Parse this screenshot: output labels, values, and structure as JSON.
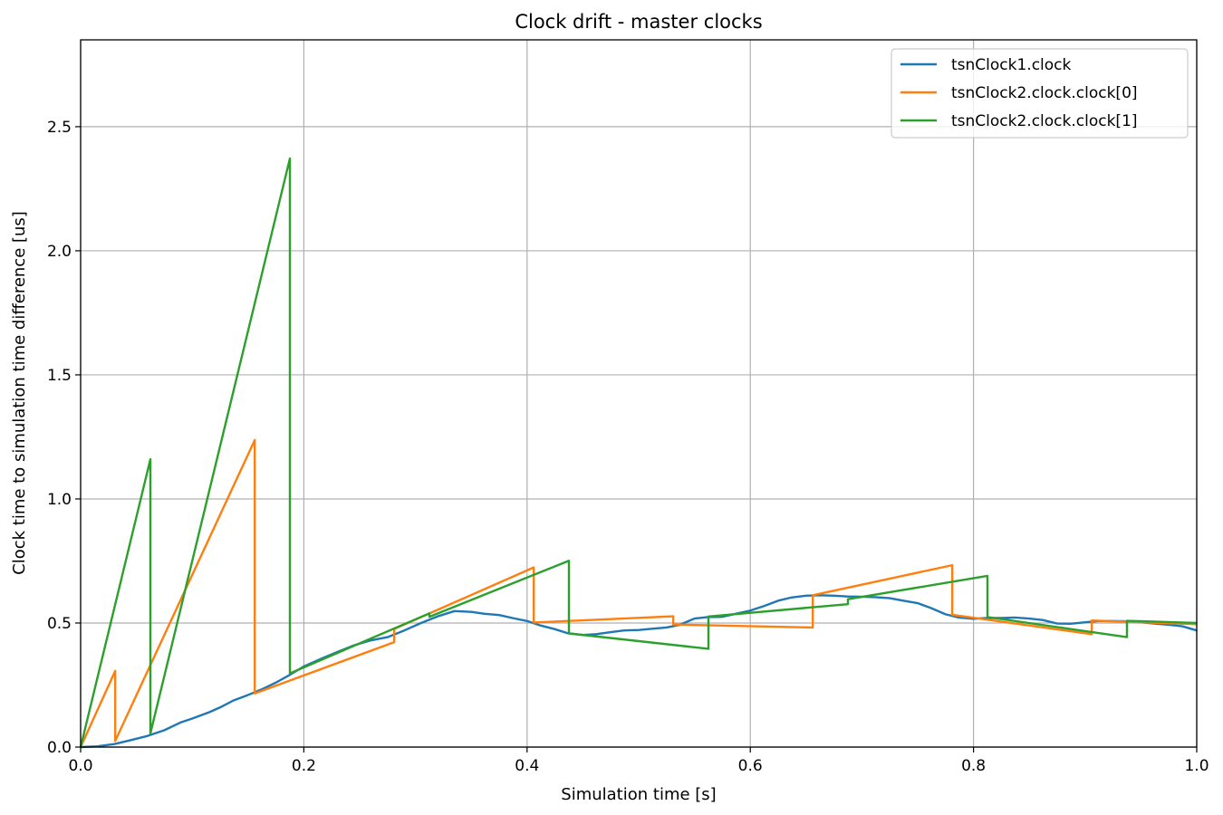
{
  "chart_data": {
    "type": "line",
    "title": "Clock drift - master clocks",
    "xlabel": "Simulation time [s]",
    "ylabel": "Clock time to simulation time difference [us]",
    "xlim": [
      0,
      1.0
    ],
    "ylim": [
      0,
      2.85
    ],
    "x_ticks": [
      0.0,
      0.2,
      0.4,
      0.6,
      0.8,
      1.0
    ],
    "x_tick_labels": [
      "0.0",
      "0.2",
      "0.4",
      "0.6",
      "0.8",
      "1.0"
    ],
    "y_ticks": [
      0.0,
      0.5,
      1.0,
      1.5,
      2.0,
      2.5
    ],
    "y_tick_labels": [
      "0.0",
      "0.5",
      "1.0",
      "1.5",
      "2.0",
      "2.5"
    ],
    "grid": true,
    "legend_position": "top-right",
    "series": [
      {
        "name": "tsnClock1.clock",
        "color": "#1f77b4",
        "points": [
          [
            0.0,
            0.0
          ],
          [
            0.015,
            0.003
          ],
          [
            0.03,
            0.012
          ],
          [
            0.045,
            0.028
          ],
          [
            0.06,
            0.045
          ],
          [
            0.075,
            0.068
          ],
          [
            0.09,
            0.1
          ],
          [
            0.1,
            0.115
          ],
          [
            0.115,
            0.14
          ],
          [
            0.125,
            0.16
          ],
          [
            0.137,
            0.188
          ],
          [
            0.15,
            0.21
          ],
          [
            0.162,
            0.232
          ],
          [
            0.175,
            0.26
          ],
          [
            0.187,
            0.29
          ],
          [
            0.2,
            0.325
          ],
          [
            0.215,
            0.355
          ],
          [
            0.23,
            0.383
          ],
          [
            0.245,
            0.41
          ],
          [
            0.26,
            0.43
          ],
          [
            0.275,
            0.443
          ],
          [
            0.29,
            0.47
          ],
          [
            0.305,
            0.5
          ],
          [
            0.32,
            0.527
          ],
          [
            0.335,
            0.548
          ],
          [
            0.35,
            0.545
          ],
          [
            0.362,
            0.537
          ],
          [
            0.375,
            0.532
          ],
          [
            0.387,
            0.52
          ],
          [
            0.4,
            0.508
          ],
          [
            0.412,
            0.49
          ],
          [
            0.425,
            0.475
          ],
          [
            0.437,
            0.458
          ],
          [
            0.45,
            0.452
          ],
          [
            0.462,
            0.455
          ],
          [
            0.475,
            0.463
          ],
          [
            0.487,
            0.47
          ],
          [
            0.5,
            0.472
          ],
          [
            0.512,
            0.477
          ],
          [
            0.525,
            0.482
          ],
          [
            0.537,
            0.493
          ],
          [
            0.55,
            0.518
          ],
          [
            0.562,
            0.524
          ],
          [
            0.575,
            0.525
          ],
          [
            0.587,
            0.537
          ],
          [
            0.6,
            0.55
          ],
          [
            0.612,
            0.568
          ],
          [
            0.625,
            0.59
          ],
          [
            0.637,
            0.603
          ],
          [
            0.65,
            0.61
          ],
          [
            0.662,
            0.612
          ],
          [
            0.675,
            0.61
          ],
          [
            0.687,
            0.607
          ],
          [
            0.7,
            0.606
          ],
          [
            0.712,
            0.604
          ],
          [
            0.725,
            0.6
          ],
          [
            0.737,
            0.59
          ],
          [
            0.75,
            0.58
          ],
          [
            0.762,
            0.56
          ],
          [
            0.775,
            0.535
          ],
          [
            0.787,
            0.522
          ],
          [
            0.8,
            0.517
          ],
          [
            0.812,
            0.52
          ],
          [
            0.825,
            0.52
          ],
          [
            0.837,
            0.522
          ],
          [
            0.85,
            0.518
          ],
          [
            0.862,
            0.512
          ],
          [
            0.875,
            0.498
          ],
          [
            0.887,
            0.497
          ],
          [
            0.9,
            0.503
          ],
          [
            0.912,
            0.508
          ],
          [
            0.925,
            0.508
          ],
          [
            0.937,
            0.507
          ],
          [
            0.95,
            0.503
          ],
          [
            0.962,
            0.498
          ],
          [
            0.975,
            0.493
          ],
          [
            0.987,
            0.487
          ],
          [
            1.0,
            0.47
          ]
        ]
      },
      {
        "name": "tsnClock2.clock.clock[0]",
        "color": "#ff7f0e",
        "points": [
          [
            0.0,
            0.0
          ],
          [
            0.031,
            0.307
          ],
          [
            0.031,
            0.025
          ],
          [
            0.156,
            1.237
          ],
          [
            0.156,
            0.216
          ],
          [
            0.281,
            0.423
          ],
          [
            0.281,
            0.476
          ],
          [
            0.406,
            0.724
          ],
          [
            0.406,
            0.502
          ],
          [
            0.531,
            0.527
          ],
          [
            0.531,
            0.494
          ],
          [
            0.656,
            0.482
          ],
          [
            0.656,
            0.612
          ],
          [
            0.781,
            0.733
          ],
          [
            0.781,
            0.533
          ],
          [
            0.906,
            0.455
          ],
          [
            0.906,
            0.51
          ],
          [
            1.0,
            0.495
          ]
        ]
      },
      {
        "name": "tsnClock2.clock.clock[1]",
        "color": "#2ca02c",
        "points": [
          [
            0.0,
            0.0
          ],
          [
            0.0625,
            1.16
          ],
          [
            0.0625,
            0.055
          ],
          [
            0.1875,
            2.372
          ],
          [
            0.1875,
            0.297
          ],
          [
            0.3125,
            0.539
          ],
          [
            0.3125,
            0.525
          ],
          [
            0.4375,
            0.751
          ],
          [
            0.4375,
            0.458
          ],
          [
            0.5625,
            0.396
          ],
          [
            0.5625,
            0.526
          ],
          [
            0.6875,
            0.576
          ],
          [
            0.6875,
            0.596
          ],
          [
            0.8125,
            0.69
          ],
          [
            0.8125,
            0.524
          ],
          [
            0.9375,
            0.443
          ],
          [
            0.9375,
            0.509
          ],
          [
            1.0,
            0.5
          ]
        ]
      }
    ]
  }
}
